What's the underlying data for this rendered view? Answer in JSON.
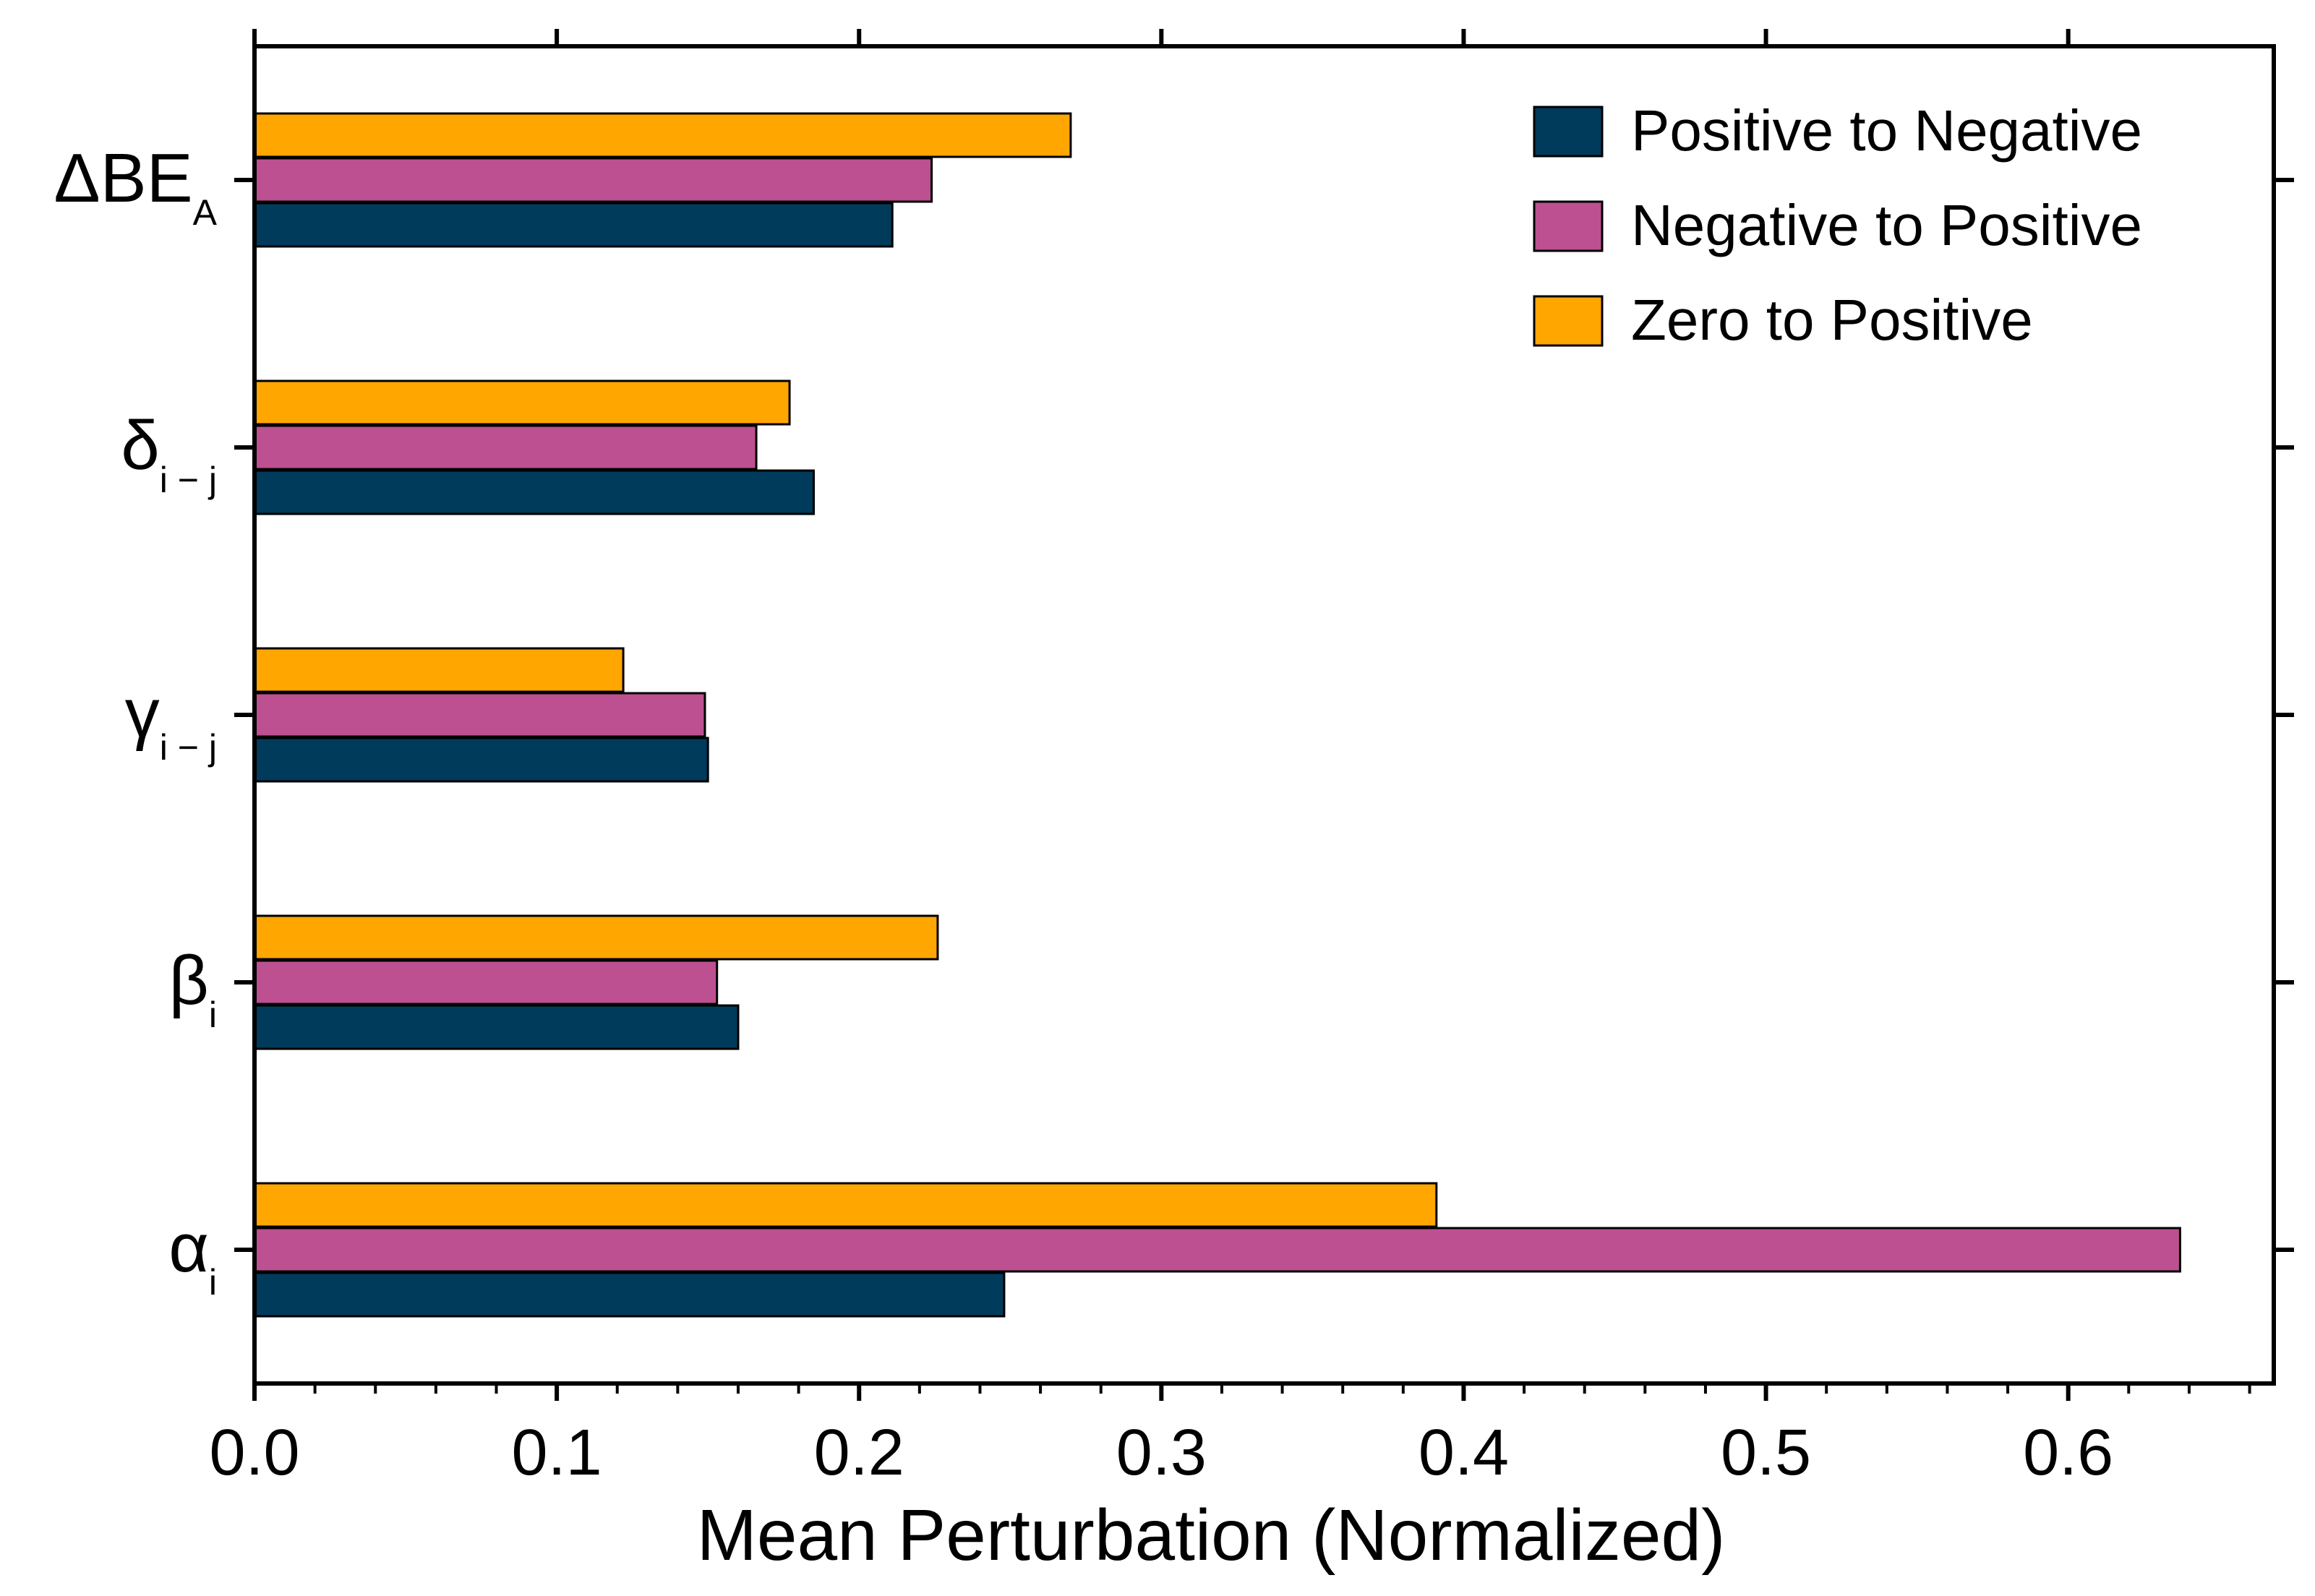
{
  "chart_data": {
    "type": "bar",
    "orientation": "horizontal",
    "title": "",
    "xlabel": "Mean Perturbation (Normalized)",
    "ylabel": "",
    "xlim": [
      0,
      0.668
    ],
    "xticks": [
      "0.0",
      "0.1",
      "0.2",
      "0.3",
      "0.4",
      "0.5",
      "0.6"
    ],
    "categories": [
      {
        "main": "α",
        "sub": "i"
      },
      {
        "main": "β",
        "sub": "i"
      },
      {
        "main": "γ",
        "sub": "i − j"
      },
      {
        "main": "δ",
        "sub": "i − j"
      },
      {
        "main": "ΔBE",
        "sub": "A"
      }
    ],
    "series": [
      {
        "name": "Positive to Negative",
        "color": "#003B5C",
        "values": [
          0.248,
          0.16,
          0.15,
          0.185,
          0.211
        ]
      },
      {
        "name": "Negative to Positive",
        "color": "#BC5090",
        "values": [
          0.637,
          0.153,
          0.149,
          0.166,
          0.224
        ]
      },
      {
        "name": "Zero to Positive",
        "color": "#FFA600",
        "values": [
          0.391,
          0.226,
          0.122,
          0.177,
          0.27
        ]
      }
    ],
    "grid": false,
    "legend_position": "top-right"
  }
}
